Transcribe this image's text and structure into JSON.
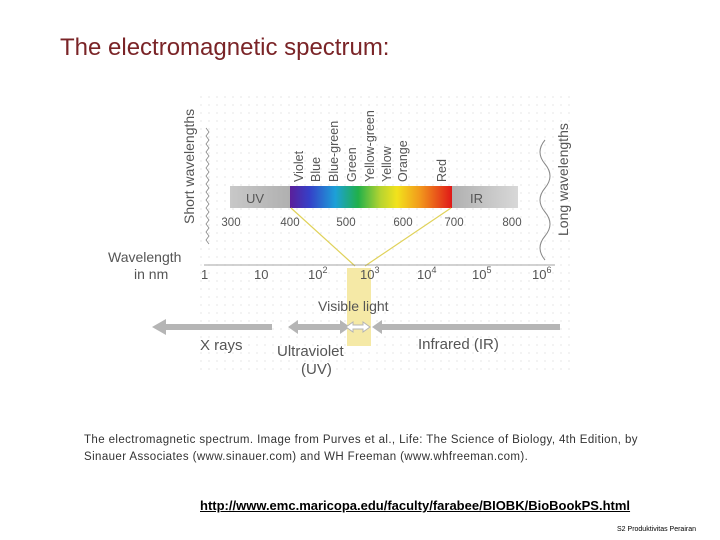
{
  "slide": {
    "title": "The electromagnetic spectrum:",
    "caption": "The electromagnetic spectrum. Image from Purves et al., Life: The Science of Biology, 4th Edition, by Sinauer Associates (www.sinauer.com) and WH Freeman (www.whfreeman.com).",
    "link": "http://www.emc.maricopa.edu/faculty/farabee/BIOBK/BioBookPS.html",
    "footer": "S2 Produktivitas Perairan"
  },
  "diagram": {
    "short_wavelengths": "Short wavelengths",
    "long_wavelengths": "Long wavelengths",
    "color_labels": [
      "Violet",
      "Blue",
      "Blue-green",
      "Green",
      "Yellow-green",
      "Yellow",
      "Orange",
      "Red"
    ],
    "uv_label": "UV",
    "ir_label": "IR",
    "nm_ticks": [
      "300",
      "400",
      "500",
      "600",
      "700",
      "800"
    ],
    "wavelength_label_line1": "Wavelength",
    "wavelength_label_line2": "in nm",
    "log_scale": [
      {
        "base": "1",
        "exp": ""
      },
      {
        "base": "10",
        "exp": ""
      },
      {
        "base": "10",
        "exp": "2"
      },
      {
        "base": "10",
        "exp": "3"
      },
      {
        "base": "10",
        "exp": "4"
      },
      {
        "base": "10",
        "exp": "5"
      },
      {
        "base": "10",
        "exp": "6"
      }
    ],
    "visible_light": "Visible light",
    "x_rays": "X rays",
    "ultraviolet_line1": "Ultraviolet",
    "ultraviolet_line2": "(UV)",
    "infrared": "Infrared (IR)"
  },
  "colors": {
    "title": "#7a2427",
    "highlight": "#f5e9a6",
    "arrow": "#b5b5b5"
  }
}
